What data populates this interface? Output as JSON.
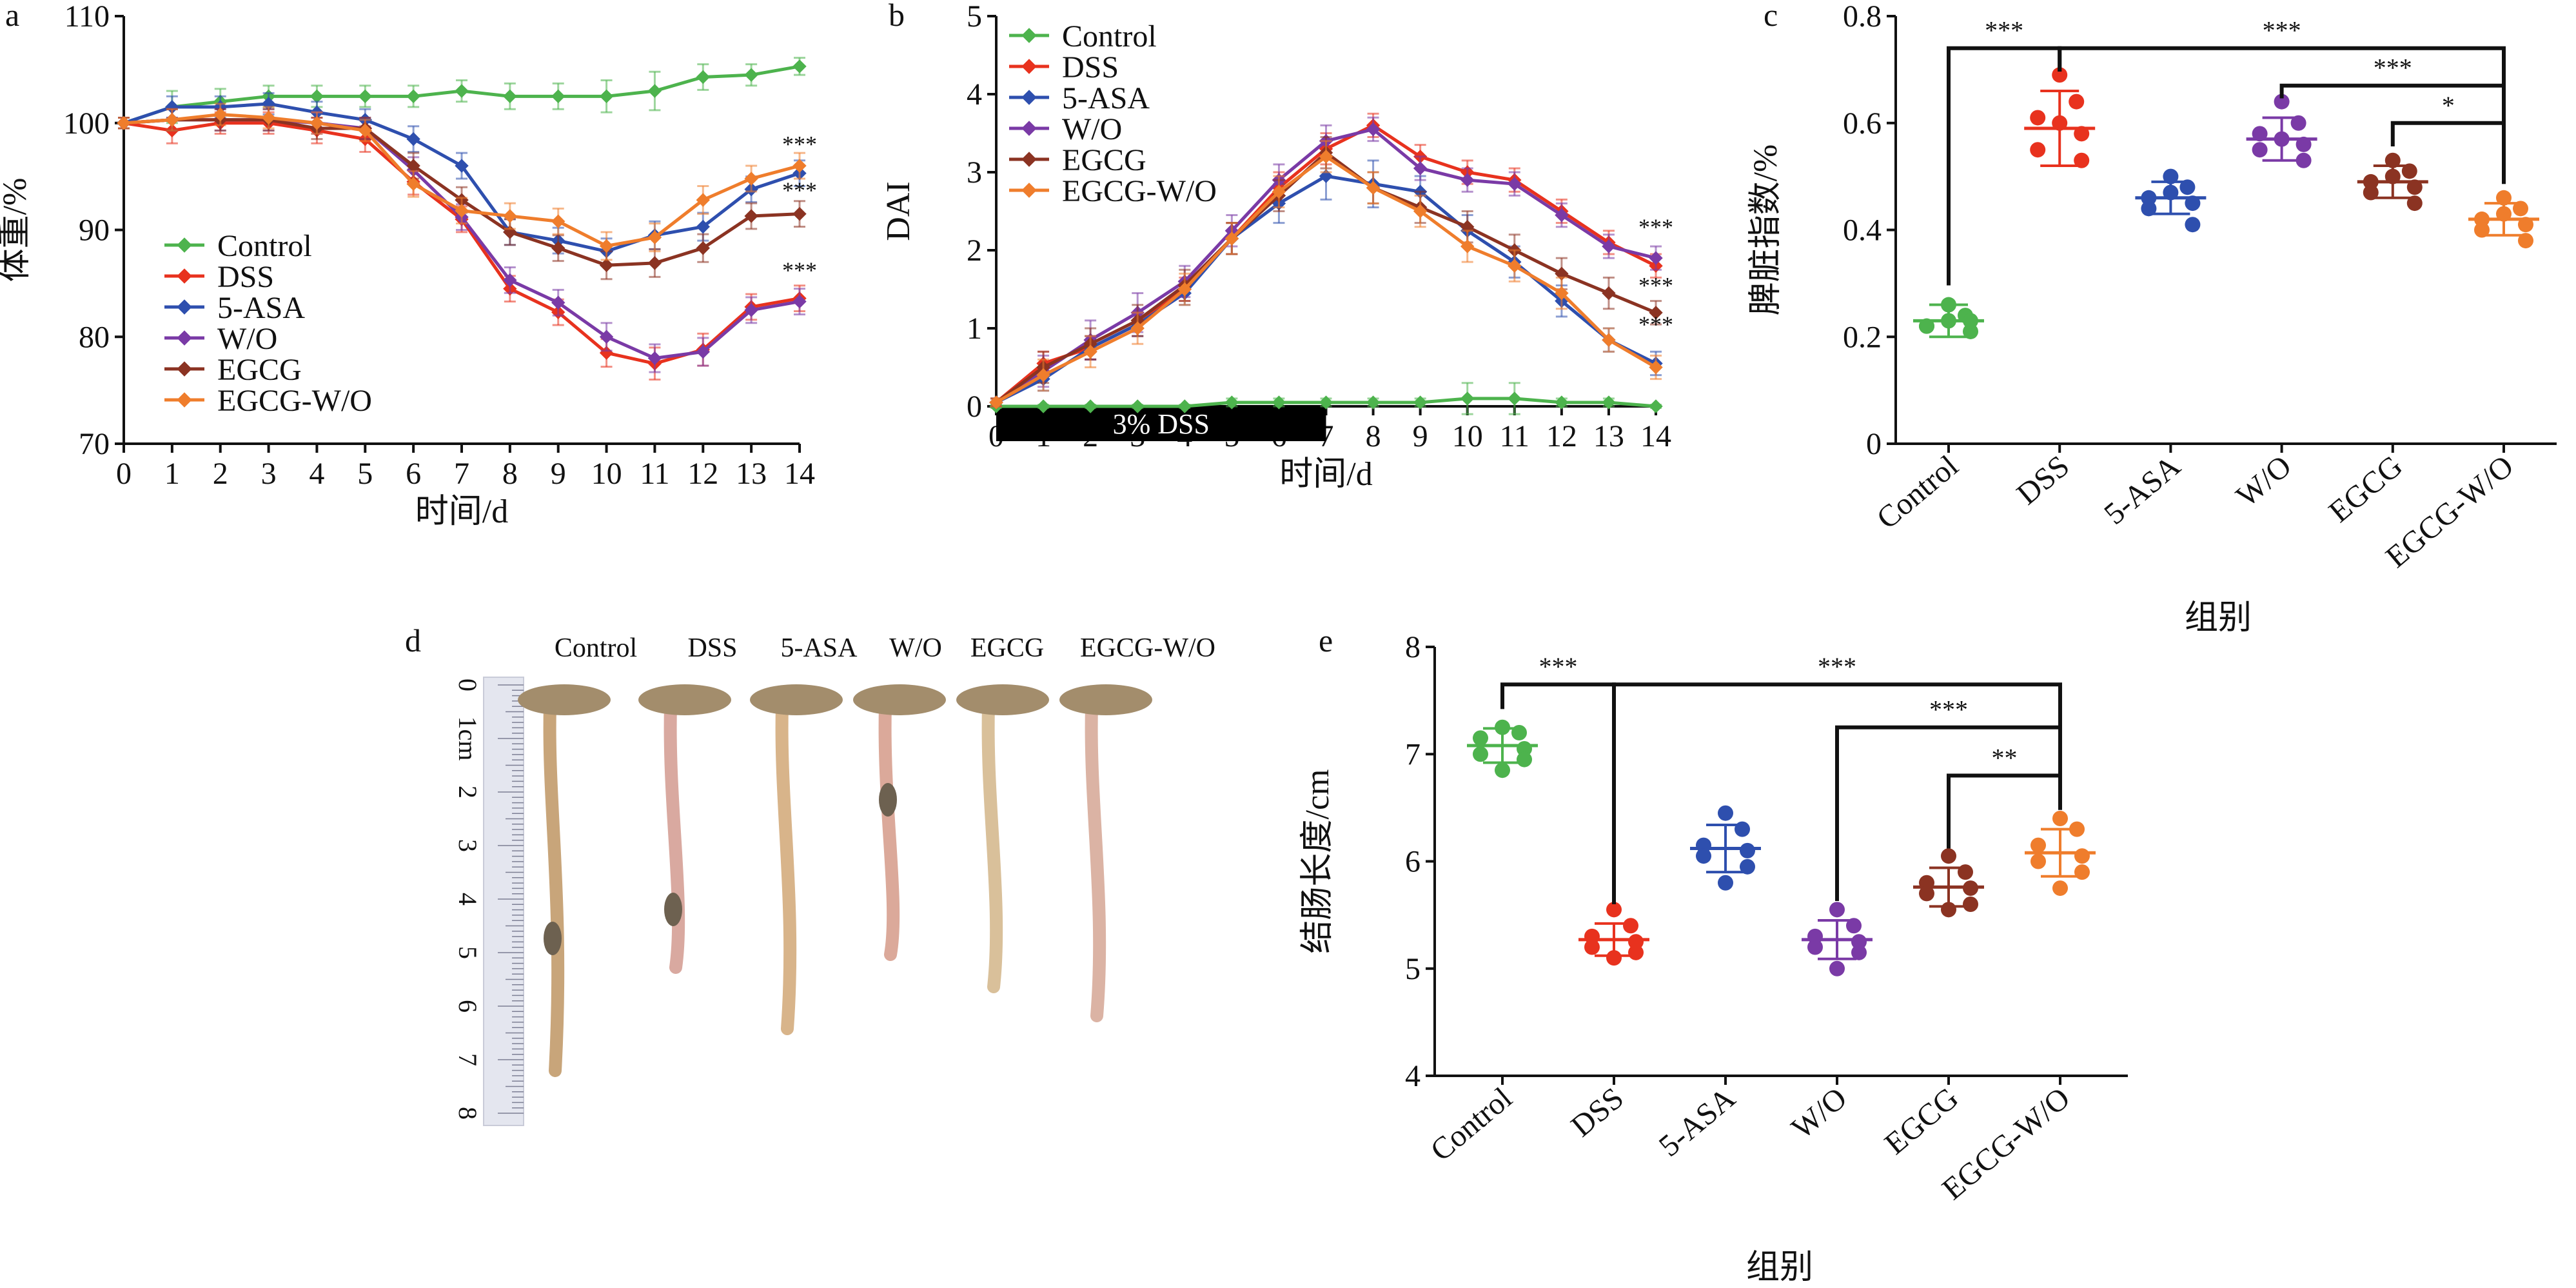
{
  "colors": {
    "Control": "#4db34d",
    "DSS": "#e8321e",
    "5-ASA": "#2e4fae",
    "W/O": "#7a3aa6",
    "EGCG": "#8b3322",
    "EGCG-W/O": "#ef7d2c"
  },
  "photo": {
    "panel_label": "d",
    "groups": [
      "Control",
      "DSS",
      "5-ASA",
      "W/O",
      "EGCG",
      "EGCG-W/O"
    ],
    "ruler_labels": [
      "0",
      "1cm",
      "2",
      "3",
      "4",
      "5",
      "6",
      "7",
      "8"
    ]
  },
  "chart_data": [
    {
      "panel_label": "a",
      "type": "line",
      "xlabel": "时间/d",
      "ylabel": "体重/%",
      "xlim": [
        0,
        14
      ],
      "ylim": [
        70,
        110
      ],
      "xticks": [
        0,
        1,
        2,
        3,
        4,
        5,
        6,
        7,
        8,
        9,
        10,
        11,
        12,
        13,
        14
      ],
      "yticks": [
        70,
        80,
        90,
        100,
        110
      ],
      "legend_position": "left",
      "x": [
        0,
        1,
        2,
        3,
        4,
        5,
        6,
        7,
        8,
        9,
        10,
        11,
        12,
        13,
        14
      ],
      "series": [
        {
          "name": "Control",
          "values": [
            100,
            101.5,
            102,
            102.5,
            102.5,
            102.5,
            102.5,
            103,
            102.5,
            102.5,
            102.5,
            103,
            104.3,
            104.5,
            105.3
          ],
          "errors": [
            0.5,
            1.5,
            1.2,
            1,
            1,
            1,
            1,
            1,
            1.2,
            1.2,
            1.5,
            1.8,
            1.2,
            1,
            0.8
          ]
        },
        {
          "name": "DSS",
          "values": [
            100,
            99.3,
            100,
            100,
            99.3,
            98.5,
            94.5,
            91,
            84.5,
            82.3,
            78.5,
            77.5,
            78.8,
            82.8,
            83.6
          ],
          "errors": [
            0.5,
            1.2,
            1,
            1,
            1.2,
            1.2,
            1.2,
            1.2,
            1.2,
            1.2,
            1.3,
            1.5,
            1.5,
            1.2,
            1.2
          ]
        },
        {
          "name": "5-ASA",
          "values": [
            100,
            101.5,
            101.5,
            101.8,
            101,
            100.3,
            98.5,
            96,
            89.8,
            89,
            88,
            89.5,
            90.3,
            93.8,
            95.3
          ],
          "errors": [
            0.5,
            1,
            1,
            1,
            1,
            1,
            1.2,
            1.2,
            1.2,
            1.2,
            1.2,
            1.3,
            1.3,
            1.2,
            1.2
          ]
        },
        {
          "name": "W/O",
          "values": [
            100,
            100.3,
            100.3,
            100.3,
            100,
            99.5,
            95.6,
            91.2,
            85.3,
            83.2,
            80,
            78,
            78.6,
            82.5,
            83.3
          ],
          "errors": [
            0.5,
            1,
            1,
            1,
            1,
            1,
            1.2,
            1.2,
            1.2,
            1.2,
            1.3,
            1.3,
            1.3,
            1.2,
            1.2
          ]
        },
        {
          "name": "EGCG",
          "values": [
            100,
            100.3,
            100.3,
            100.3,
            99.5,
            99.5,
            96,
            92.8,
            89.8,
            88.3,
            86.7,
            86.9,
            88.3,
            91.3,
            91.5
          ],
          "errors": [
            0.5,
            1,
            1,
            1,
            1,
            1,
            1.2,
            1.2,
            1.2,
            1.2,
            1.3,
            1.3,
            1.3,
            1.2,
            1.2
          ]
        },
        {
          "name": "EGCG-W/O",
          "values": [
            100,
            100.3,
            100.8,
            100.5,
            100,
            99.3,
            94.3,
            91.8,
            91.3,
            90.8,
            88.5,
            89.3,
            92.8,
            94.8,
            96
          ],
          "errors": [
            0.5,
            1,
            1,
            1,
            1,
            1,
            1.2,
            1.2,
            1.2,
            1.2,
            1.3,
            1.3,
            1.3,
            1.2,
            1.2
          ]
        }
      ],
      "annotations": [
        {
          "text": "***",
          "x": 14,
          "y": 97.3
        },
        {
          "text": "***",
          "x": 14,
          "y": 93
        },
        {
          "text": "***",
          "x": 14,
          "y": 85.5
        }
      ]
    },
    {
      "panel_label": "b",
      "type": "line",
      "xlabel": "时间/d",
      "ylabel": "DAI",
      "xlim": [
        0,
        14
      ],
      "ylim": [
        0,
        5
      ],
      "xticks": [
        0,
        1,
        2,
        3,
        4,
        5,
        6,
        7,
        8,
        9,
        10,
        11,
        12,
        13,
        14
      ],
      "yticks": [
        0,
        1,
        2,
        3,
        4,
        5
      ],
      "legend_position": "top-left",
      "bar_label": "3% DSS",
      "bar_range": [
        0,
        7
      ],
      "x": [
        0,
        1,
        2,
        3,
        4,
        5,
        6,
        7,
        8,
        9,
        10,
        11,
        12,
        13,
        14
      ],
      "series": [
        {
          "name": "Control",
          "values": [
            0,
            0,
            0,
            0,
            0,
            0.05,
            0.05,
            0.05,
            0.05,
            0.05,
            0.1,
            0.1,
            0.05,
            0.05,
            0
          ],
          "errors": [
            0.02,
            0.02,
            0.02,
            0.02,
            0.02,
            0.05,
            0.05,
            0.05,
            0.05,
            0.05,
            0.2,
            0.2,
            0.05,
            0.05,
            0.02
          ]
        },
        {
          "name": "DSS",
          "values": [
            0.05,
            0.55,
            0.75,
            1.05,
            1.5,
            2.15,
            2.8,
            3.3,
            3.6,
            3.2,
            3.0,
            2.9,
            2.5,
            2.1,
            1.8
          ],
          "errors": [
            0.05,
            0.15,
            0.15,
            0.15,
            0.15,
            0.2,
            0.2,
            0.2,
            0.15,
            0.15,
            0.15,
            0.15,
            0.15,
            0.15,
            0.15
          ]
        },
        {
          "name": "5-ASA",
          "values": [
            0.05,
            0.35,
            0.75,
            1.05,
            1.45,
            2.15,
            2.6,
            2.95,
            2.85,
            2.75,
            2.25,
            1.85,
            1.35,
            0.85,
            0.55
          ],
          "errors": [
            0.05,
            0.15,
            0.15,
            0.15,
            0.15,
            0.2,
            0.25,
            0.3,
            0.3,
            0.2,
            0.2,
            0.2,
            0.2,
            0.15,
            0.15
          ]
        },
        {
          "name": "W/O",
          "values": [
            0.05,
            0.45,
            0.85,
            1.2,
            1.6,
            2.25,
            2.9,
            3.4,
            3.55,
            3.05,
            2.9,
            2.85,
            2.45,
            2.05,
            1.9
          ],
          "errors": [
            0.05,
            0.2,
            0.25,
            0.25,
            0.2,
            0.2,
            0.2,
            0.2,
            0.15,
            0.15,
            0.15,
            0.15,
            0.15,
            0.15,
            0.15
          ]
        },
        {
          "name": "EGCG",
          "values": [
            0.05,
            0.5,
            0.8,
            1.1,
            1.55,
            2.15,
            2.7,
            3.25,
            2.8,
            2.55,
            2.3,
            2.0,
            1.7,
            1.45,
            1.2
          ],
          "errors": [
            0.05,
            0.2,
            0.2,
            0.2,
            0.2,
            0.2,
            0.2,
            0.2,
            0.2,
            0.2,
            0.2,
            0.2,
            0.2,
            0.2,
            0.15
          ]
        },
        {
          "name": "EGCG-W/O",
          "values": [
            0.05,
            0.4,
            0.7,
            1.0,
            1.5,
            2.15,
            2.75,
            3.2,
            2.8,
            2.5,
            2.05,
            1.8,
            1.45,
            0.85,
            0.5
          ],
          "errors": [
            0.05,
            0.2,
            0.2,
            0.2,
            0.2,
            0.2,
            0.2,
            0.2,
            0.2,
            0.2,
            0.2,
            0.2,
            0.2,
            0.15,
            0.15
          ]
        }
      ],
      "annotations": [
        {
          "text": "***",
          "x": 14,
          "y": 2.2
        },
        {
          "text": "***",
          "x": 14,
          "y": 1.45
        },
        {
          "text": "***",
          "x": 14,
          "y": 0.95
        }
      ]
    },
    {
      "panel_label": "c",
      "type": "scatter",
      "xlabel": "组别",
      "ylabel": "脾脏指数/%",
      "ylim": [
        0,
        0.8
      ],
      "yticks": [
        0,
        0.2,
        0.4,
        0.6,
        0.8
      ],
      "categories": [
        "Control",
        "DSS",
        "5-ASA",
        "W/O",
        "EGCG",
        "EGCG-W/O"
      ],
      "groups": [
        {
          "name": "Control",
          "mean": 0.23,
          "sd": 0.03,
          "points": [
            0.26,
            0.24,
            0.22,
            0.21,
            0.22,
            0.23,
            0.23
          ]
        },
        {
          "name": "DSS",
          "mean": 0.59,
          "sd": 0.07,
          "points": [
            0.69,
            0.64,
            0.61,
            0.58,
            0.55,
            0.53,
            0.6
          ]
        },
        {
          "name": "5-ASA",
          "mean": 0.46,
          "sd": 0.03,
          "points": [
            0.5,
            0.48,
            0.46,
            0.45,
            0.44,
            0.41,
            0.47
          ]
        },
        {
          "name": "W/O",
          "mean": 0.57,
          "sd": 0.04,
          "points": [
            0.64,
            0.6,
            0.58,
            0.56,
            0.55,
            0.53,
            0.57
          ]
        },
        {
          "name": "EGCG",
          "mean": 0.49,
          "sd": 0.03,
          "points": [
            0.53,
            0.51,
            0.49,
            0.48,
            0.47,
            0.45,
            0.5
          ]
        },
        {
          "name": "EGCG-W/O",
          "mean": 0.42,
          "sd": 0.03,
          "points": [
            0.46,
            0.44,
            0.42,
            0.41,
            0.4,
            0.38,
            0.43
          ]
        }
      ],
      "significance": [
        {
          "from": "Control",
          "to": "DSS",
          "label": "***",
          "y": 0.74
        },
        {
          "from": "DSS",
          "to": "EGCG-W/O",
          "label": "***",
          "y": 0.74
        },
        {
          "from": "W/O",
          "to": "EGCG-W/O",
          "label": "***",
          "y": 0.67
        },
        {
          "from": "EGCG",
          "to": "EGCG-W/O",
          "label": "*",
          "y": 0.6
        }
      ]
    },
    {
      "panel_label": "e",
      "type": "scatter",
      "xlabel": "组别",
      "ylabel": "结肠长度/cm",
      "ylim": [
        4,
        8
      ],
      "yticks": [
        4,
        5,
        6,
        7,
        8
      ],
      "categories": [
        "Control",
        "DSS",
        "5-ASA",
        "W/O",
        "EGCG",
        "EGCG-W/O"
      ],
      "groups": [
        {
          "name": "Control",
          "mean": 7.08,
          "sd": 0.16,
          "points": [
            7.25,
            7.2,
            7.15,
            7.05,
            7.0,
            6.95,
            6.85
          ]
        },
        {
          "name": "DSS",
          "mean": 5.27,
          "sd": 0.15,
          "points": [
            5.55,
            5.4,
            5.3,
            5.25,
            5.2,
            5.15,
            5.1
          ]
        },
        {
          "name": "5-ASA",
          "mean": 6.12,
          "sd": 0.22,
          "points": [
            6.45,
            6.3,
            6.15,
            6.1,
            6.05,
            5.95,
            5.8
          ]
        },
        {
          "name": "W/O",
          "mean": 5.27,
          "sd": 0.18,
          "points": [
            5.55,
            5.4,
            5.3,
            5.25,
            5.2,
            5.15,
            5.0
          ]
        },
        {
          "name": "EGCG",
          "mean": 5.76,
          "sd": 0.18,
          "points": [
            6.05,
            5.9,
            5.8,
            5.75,
            5.7,
            5.6,
            5.55
          ]
        },
        {
          "name": "EGCG-W/O",
          "mean": 6.08,
          "sd": 0.22,
          "points": [
            6.4,
            6.3,
            6.15,
            6.05,
            6.0,
            5.9,
            5.75
          ]
        }
      ],
      "significance": [
        {
          "from": "Control",
          "to": "DSS",
          "label": "***",
          "y": 7.65
        },
        {
          "from": "DSS",
          "to": "EGCG-W/O",
          "label": "***",
          "y": 7.65
        },
        {
          "from": "W/O",
          "to": "EGCG-W/O",
          "label": "***",
          "y": 7.25
        },
        {
          "from": "EGCG",
          "to": "EGCG-W/O",
          "label": "**",
          "y": 6.8
        }
      ]
    }
  ]
}
